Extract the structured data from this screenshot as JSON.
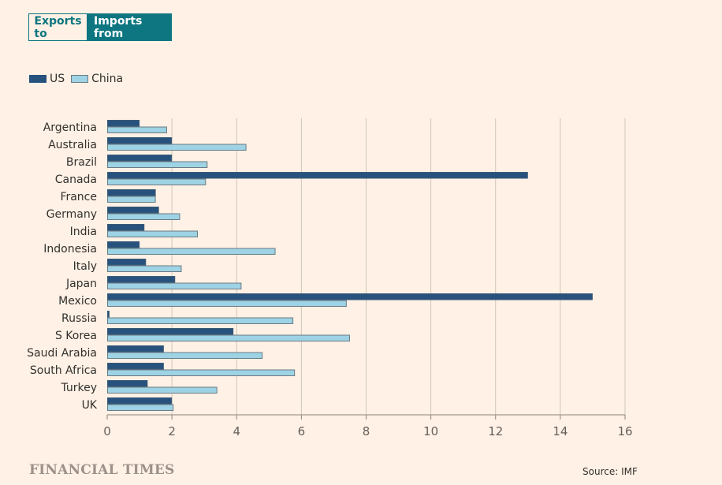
{
  "toggle": {
    "options": [
      {
        "label": "Exports to",
        "active": false
      },
      {
        "label": "Imports from",
        "active": true
      }
    ]
  },
  "colors": {
    "background": "#FFF1E5",
    "accent": "#0D7680",
    "us": "#27527E",
    "china": "#9DD3E4",
    "bar_stroke": "#6C7A83",
    "grid": "#CEC6B9",
    "axis": "#8E8379",
    "text": "#33302E"
  },
  "footer": {
    "logo": "FINANCIAL TIMES",
    "source": "Source: IMF"
  },
  "chart_data": {
    "type": "bar",
    "orientation": "horizontal",
    "title": "",
    "xlabel": "",
    "ylabel": "",
    "xlim": [
      0,
      16
    ],
    "xticks": [
      0,
      2,
      4,
      6,
      8,
      10,
      12,
      14,
      16
    ],
    "grid": true,
    "legend": {
      "placement": "top-left",
      "entries": [
        "US",
        "China"
      ]
    },
    "categories": [
      "Argentina",
      "Australia",
      "Brazil",
      "Canada",
      "France",
      "Germany",
      "India",
      "Indonesia",
      "Italy",
      "Japan",
      "Mexico",
      "Russia",
      "S Korea",
      "Saudi Arabia",
      "South Africa",
      "Turkey",
      "UK"
    ],
    "series": [
      {
        "name": "US",
        "values": [
          1.0,
          2.0,
          2.0,
          13.0,
          1.5,
          1.6,
          1.15,
          1.0,
          1.2,
          2.1,
          15.0,
          0.07,
          3.9,
          1.75,
          1.75,
          1.25,
          2.0
        ]
      },
      {
        "name": "China",
        "values": [
          1.85,
          4.3,
          3.1,
          3.05,
          1.5,
          2.25,
          2.8,
          5.2,
          2.3,
          4.15,
          7.4,
          5.75,
          7.5,
          4.8,
          5.8,
          3.4,
          2.05
        ]
      }
    ]
  }
}
